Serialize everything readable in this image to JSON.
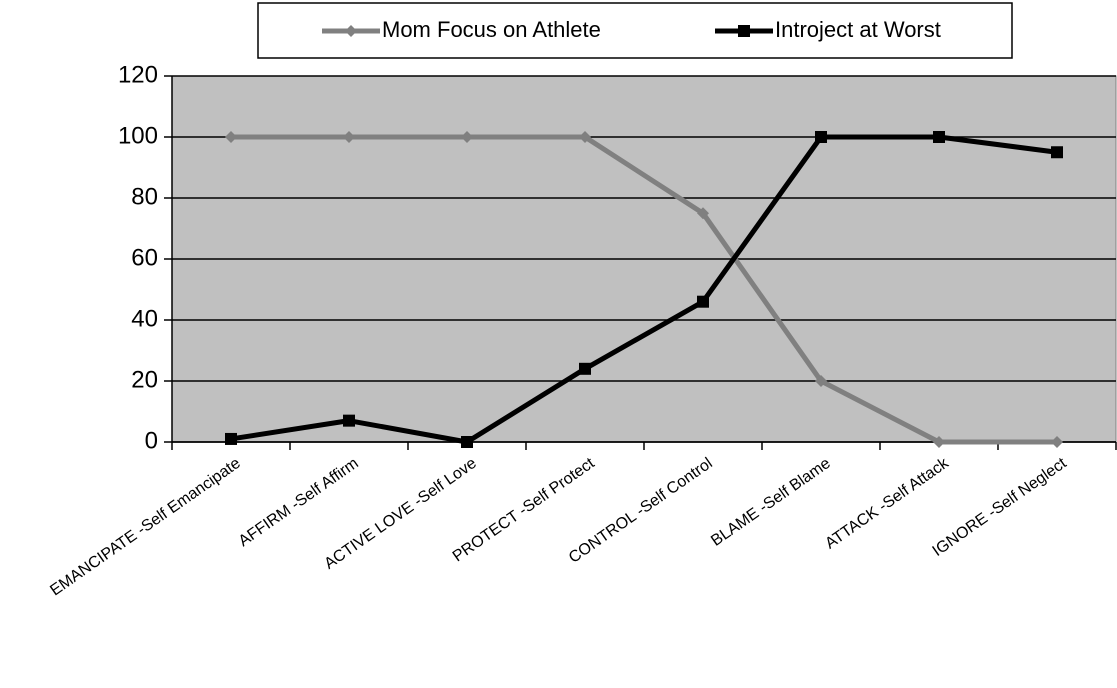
{
  "chart_data": {
    "type": "line",
    "categories": [
      "EMANCIPATE -Self Emancipate",
      "AFFIRM -Self Affirm",
      "ACTIVE LOVE -Self Love",
      "PROTECT -Self Protect",
      "CONTROL -Self Control",
      "BLAME -Self Blame",
      "ATTACK -Self Attack",
      "IGNORE -Self Neglect"
    ],
    "series": [
      {
        "name": "Mom Focus on Athlete",
        "color": "#808080",
        "marker": "diamond",
        "values": [
          100,
          100,
          100,
          100,
          75,
          20,
          0,
          0
        ]
      },
      {
        "name": "Introject at Worst",
        "color": "#000000",
        "marker": "square",
        "values": [
          1,
          7,
          0,
          24,
          46,
          100,
          100,
          95
        ]
      }
    ],
    "ylim": [
      0,
      120
    ],
    "yticks": [
      0,
      20,
      40,
      60,
      80,
      100,
      120
    ],
    "grid": true,
    "legend": "top"
  }
}
